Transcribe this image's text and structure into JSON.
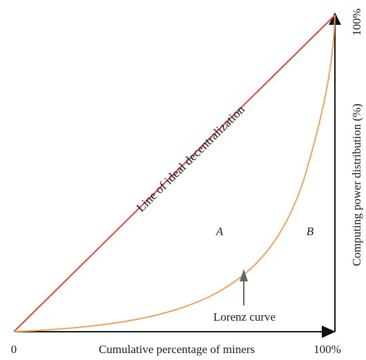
{
  "colors": {
    "ideal_line": "#e0452f",
    "lorenz_curve": "#f0a060",
    "axes": "#111111",
    "pointer": "#666666",
    "text": "#1a1a1a"
  },
  "labels": {
    "origin": "0",
    "x_end": "100%",
    "y_end": "100%",
    "x_axis": "Cumulative percentage of miners",
    "y_axis": "Computing power distribution (%)",
    "ideal_line": "Line of ideal decentralization",
    "region_a": "A",
    "region_b": "B",
    "lorenz": "Lorenz curve"
  }
}
